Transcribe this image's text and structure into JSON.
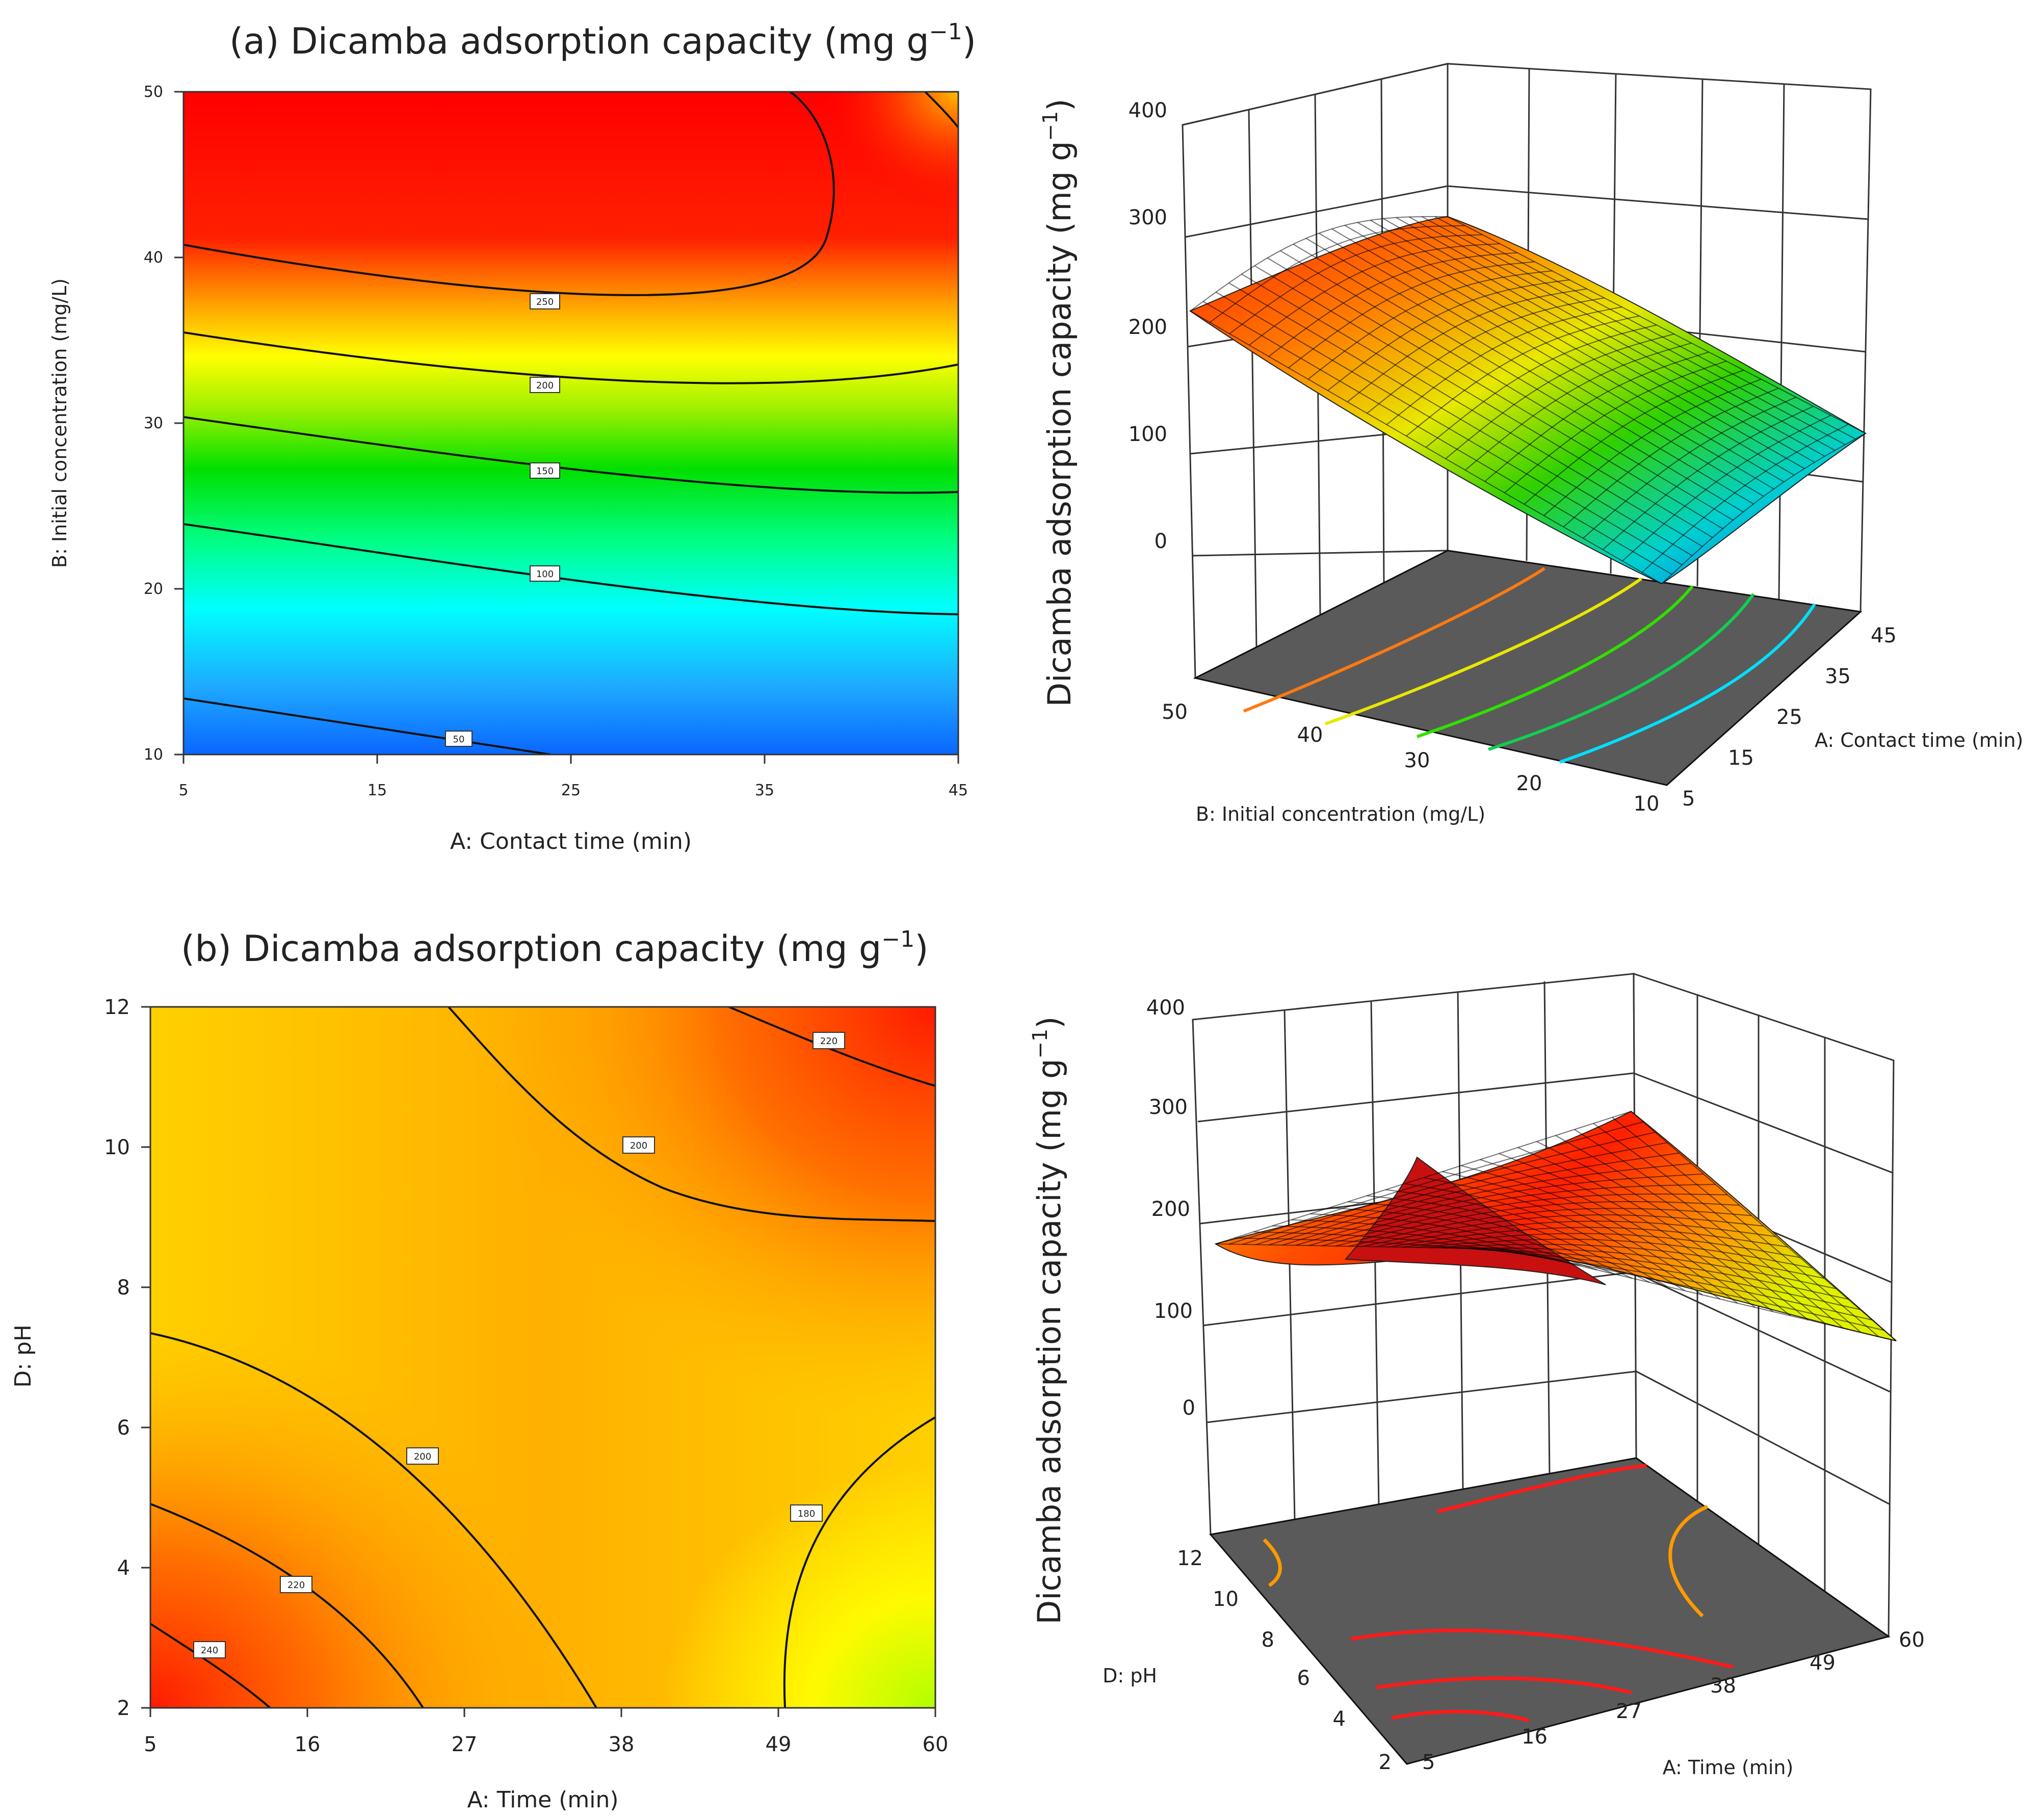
{
  "panel_a": {
    "title_prefix": "(a) Dicamba adsorption capacity (mg g",
    "title_sup": "−1",
    "title_suffix": ")"
  },
  "panel_b": {
    "title_prefix": "(b) Dicamba adsorption capacity (mg g",
    "title_sup": "−1",
    "title_suffix": ")"
  },
  "colors": {
    "red": "#ff0000",
    "orange": "#ff9900",
    "yellow": "#ffff00",
    "green": "#00e000",
    "cyan": "#00ffff",
    "blue": "#0066ff",
    "floor": "#5a5a5a"
  },
  "chart_data": [
    {
      "id": "a-contour",
      "type": "heatmap",
      "title": "(a) Dicamba adsorption capacity (mg g−1)",
      "xlabel": "A: Contact time (min)",
      "ylabel": "B: Initial concentration (mg/L)",
      "xlim": [
        5,
        45
      ],
      "ylim": [
        10,
        50
      ],
      "x_ticks": [
        "5",
        "15",
        "25",
        "35",
        "45"
      ],
      "y_ticks": [
        "10",
        "20",
        "30",
        "40",
        "50"
      ],
      "contour_levels": [
        50,
        100,
        150,
        200,
        250
      ],
      "contour_labels": [
        "50",
        "100",
        "150",
        "200",
        "250"
      ]
    },
    {
      "id": "a-surface",
      "type": "surface",
      "zlabel_prefix": "Dicamba adsorption capacity (mg g",
      "zlabel_sup": "−1",
      "zlabel_suffix": ")",
      "xlabel": "A: Contact time (min)",
      "ylabel": "B: Initial concentration (mg/L)",
      "z_ticks": [
        "0",
        "100",
        "200",
        "300",
        "400"
      ],
      "x_ticks": [
        "5",
        "15",
        "25",
        "35",
        "45"
      ],
      "y_ticks": [
        "10",
        "20",
        "30",
        "40",
        "50"
      ],
      "zlim": [
        0,
        400
      ]
    },
    {
      "id": "b-contour",
      "type": "heatmap",
      "title": "(b) Dicamba adsorption capacity (mg g−1)",
      "xlabel": "A: Time (min)",
      "ylabel": "D: pH",
      "xlim": [
        5,
        60
      ],
      "ylim": [
        2,
        12
      ],
      "x_ticks": [
        "5",
        "16",
        "27",
        "38",
        "49",
        "60"
      ],
      "y_ticks": [
        "2",
        "4",
        "6",
        "8",
        "10",
        "12"
      ],
      "contour_levels": [
        180,
        200,
        220,
        240
      ],
      "contour_labels": [
        "180",
        "200",
        "220",
        "240"
      ]
    },
    {
      "id": "b-surface",
      "type": "surface",
      "zlabel_prefix": "Dicamba adsorption capacity (mg g",
      "zlabel_sup": "−1",
      "zlabel_suffix": ")",
      "xlabel": "A: Time (min)",
      "ylabel": "D: pH",
      "z_ticks": [
        "0",
        "100",
        "200",
        "300",
        "400"
      ],
      "x_ticks": [
        "5",
        "16",
        "27",
        "38",
        "49",
        "60"
      ],
      "y_ticks": [
        "2",
        "4",
        "6",
        "8",
        "10",
        "12"
      ],
      "zlim": [
        0,
        400
      ]
    }
  ]
}
